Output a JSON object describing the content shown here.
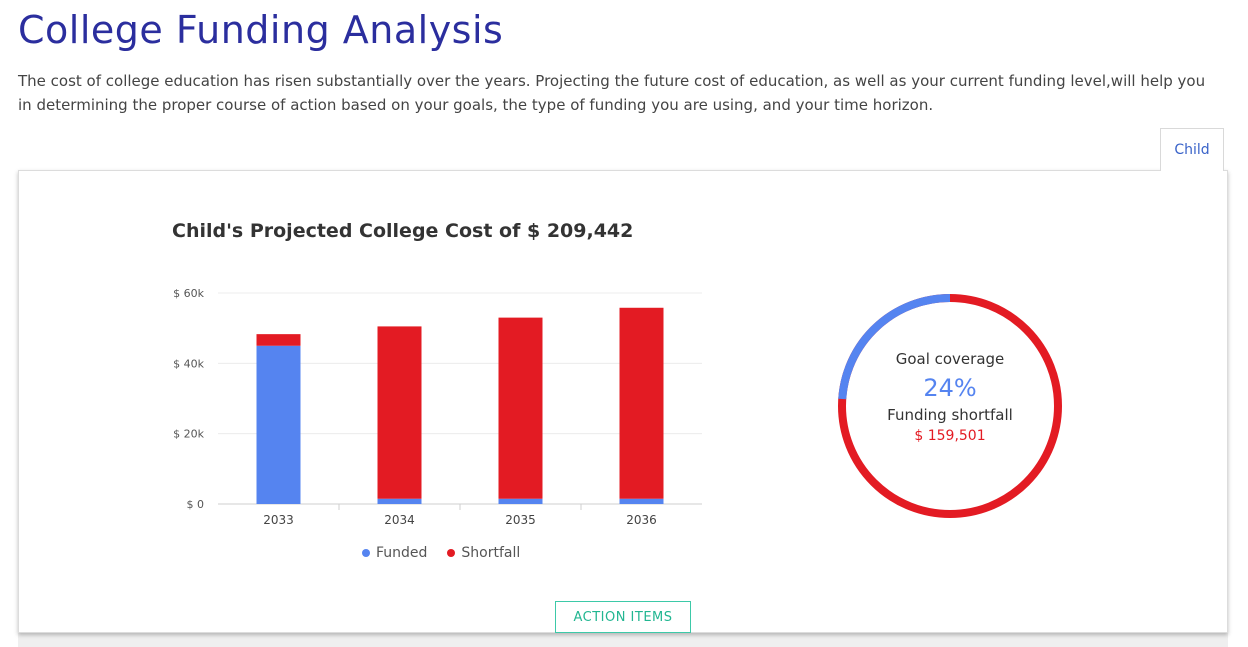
{
  "header": {
    "title": "College Funding Analysis",
    "intro": "The cost of college education has risen substantially over the years. Projecting the future cost of education, as well as your current funding level,will help you in determining the proper course of action based on your goals, the type of funding you are using, and your time horizon."
  },
  "tabs": [
    {
      "label": "Child",
      "active": true
    }
  ],
  "chart_data": {
    "type": "bar",
    "stacked": true,
    "title": "Child's Projected College Cost of $ 209,442",
    "categories": [
      "2033",
      "2034",
      "2035",
      "2036"
    ],
    "series": [
      {
        "name": "Funded",
        "color": "#5584f0",
        "values": [
          45000,
          1500,
          1500,
          1500
        ]
      },
      {
        "name": "Shortfall",
        "color": "#e31b23",
        "values": [
          3300,
          49000,
          51500,
          54300
        ]
      }
    ],
    "y_ticks": [
      "$ 0",
      "$ 20k",
      "$ 40k",
      "$ 60k"
    ],
    "ylim": [
      0,
      60000
    ],
    "legend_position": "bottom",
    "grid": true
  },
  "summary": {
    "goal_label": "Goal coverage",
    "goal_percent_text": "24%",
    "goal_fraction": 0.24,
    "shortfall_label": "Funding shortfall",
    "shortfall_value": "$ 159,501",
    "funded_color": "#5584f0",
    "shortfall_color": "#e31b23"
  },
  "actions": {
    "action_items_label": "ACTION ITEMS"
  }
}
